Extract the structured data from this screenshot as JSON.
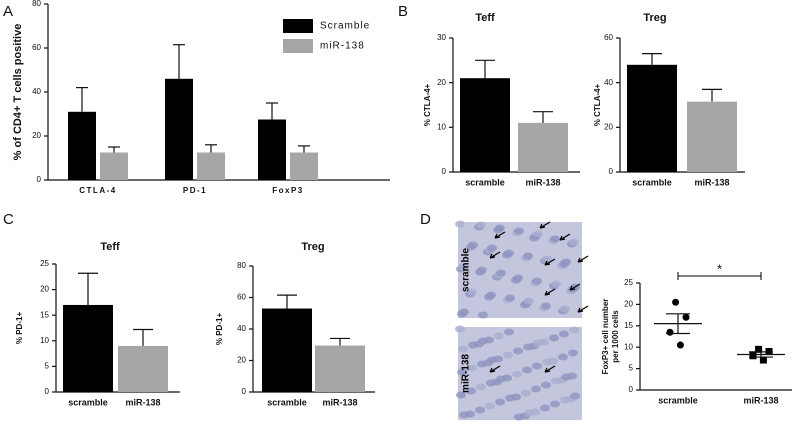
{
  "chart_data": [
    {
      "type": "bar",
      "panel": "A",
      "ylabel": "% of CD4+ T cells positive",
      "categories": [
        "CTLA-4",
        "PD-1",
        "FoxP3"
      ],
      "series": [
        {
          "name": "Scramble",
          "color": "#000000",
          "values": [
            31,
            46,
            27.5
          ],
          "errors": [
            11,
            15.5,
            7.5
          ]
        },
        {
          "name": "miR-138",
          "color": "#a6a6a6",
          "values": [
            12.5,
            12.5,
            12.5
          ],
          "errors": [
            2.5,
            3.5,
            3
          ]
        }
      ],
      "ylim": [
        0,
        80
      ],
      "yticks": [
        0,
        20,
        40,
        60,
        80
      ]
    },
    {
      "type": "bar",
      "panel": "B",
      "title": "Teff",
      "ylabel": "% CTLA-4+",
      "categories": [
        "scramble",
        "miR-138"
      ],
      "values": [
        21,
        11
      ],
      "errors": [
        4,
        2.5
      ],
      "colors": [
        "#000000",
        "#a6a6a6"
      ],
      "ylim": [
        0,
        30
      ],
      "yticks": [
        0,
        10,
        20,
        30
      ]
    },
    {
      "type": "bar",
      "title": "Treg",
      "ylabel": "% CTLA-4+",
      "categories": [
        "scramble",
        "miR-138"
      ],
      "values": [
        48,
        31.5
      ],
      "errors": [
        5,
        5.5
      ],
      "colors": [
        "#000000",
        "#a6a6a6"
      ],
      "ylim": [
        0,
        60
      ],
      "yticks": [
        0,
        20,
        40,
        60
      ]
    },
    {
      "type": "bar",
      "panel": "C",
      "title": "Teff",
      "ylabel": "% PD-1+",
      "categories": [
        "scramble",
        "miR-138"
      ],
      "values": [
        17,
        9
      ],
      "errors": [
        6.2,
        3.2
      ],
      "colors": [
        "#000000",
        "#a6a6a6"
      ],
      "ylim": [
        0,
        25
      ],
      "yticks": [
        0,
        5,
        10,
        15,
        20,
        25
      ]
    },
    {
      "type": "bar",
      "title": "Treg",
      "ylabel": "% PD-1+",
      "categories": [
        "scramble",
        "miR-138"
      ],
      "values": [
        53,
        29.5
      ],
      "errors": [
        8.5,
        4.5
      ],
      "colors": [
        "#000000",
        "#a6a6a6"
      ],
      "ylim": [
        0,
        80
      ],
      "yticks": [
        0,
        20,
        40,
        60,
        80
      ]
    },
    {
      "type": "dot",
      "panel": "D",
      "ylabel": [
        "FoxP3+ cell number",
        "per 1000 cells"
      ],
      "images": [
        {
          "label": "scramble"
        },
        {
          "label": "miR-138"
        }
      ],
      "categories": [
        "scramble",
        "miR-138"
      ],
      "groups": [
        {
          "values": [
            20.5,
            17,
            13.5,
            10.5
          ],
          "mean": 15.5,
          "sem": 2.3,
          "marker": "circle"
        },
        {
          "values": [
            9.5,
            9,
            8,
            7
          ],
          "mean": 8.3,
          "sem": 0.6,
          "marker": "square"
        }
      ],
      "annotation": "*",
      "ylim": [
        0,
        25
      ],
      "yticks": [
        0,
        5,
        10,
        15,
        20,
        25
      ]
    }
  ]
}
